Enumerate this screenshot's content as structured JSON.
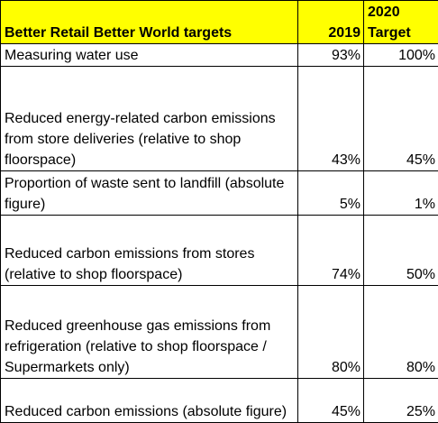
{
  "table": {
    "header": {
      "title": "Better Retail Better World targets",
      "col_2019": "2019",
      "col_2020_line1": "2020",
      "col_2020_line2": "Target"
    },
    "colors": {
      "header_background": "#ffff00",
      "border": "#000000"
    },
    "rows": [
      {
        "label": "Measuring water use",
        "v2019": "93%",
        "v2020": "100%"
      },
      {
        "label": "Reduced energy-related carbon emissions from store deliveries (relative to shop floorspace)",
        "v2019": "43%",
        "v2020": "45%"
      },
      {
        "label": "Proportion of waste sent to landfill (absolute figure)",
        "v2019": "5%",
        "v2020": "1%"
      },
      {
        "label": "Reduced carbon emissions from stores (relative to shop floorspace)",
        "v2019": "74%",
        "v2020": "50%"
      },
      {
        "label": "Reduced greenhouse gas emissions from refrigeration (relative to shop floorspace / Supermarkets only)",
        "v2019": "80%",
        "v2020": "80%"
      },
      {
        "label": "Reduced carbon emissions (absolute figure)",
        "v2019": "45%",
        "v2020": "25%"
      }
    ]
  }
}
